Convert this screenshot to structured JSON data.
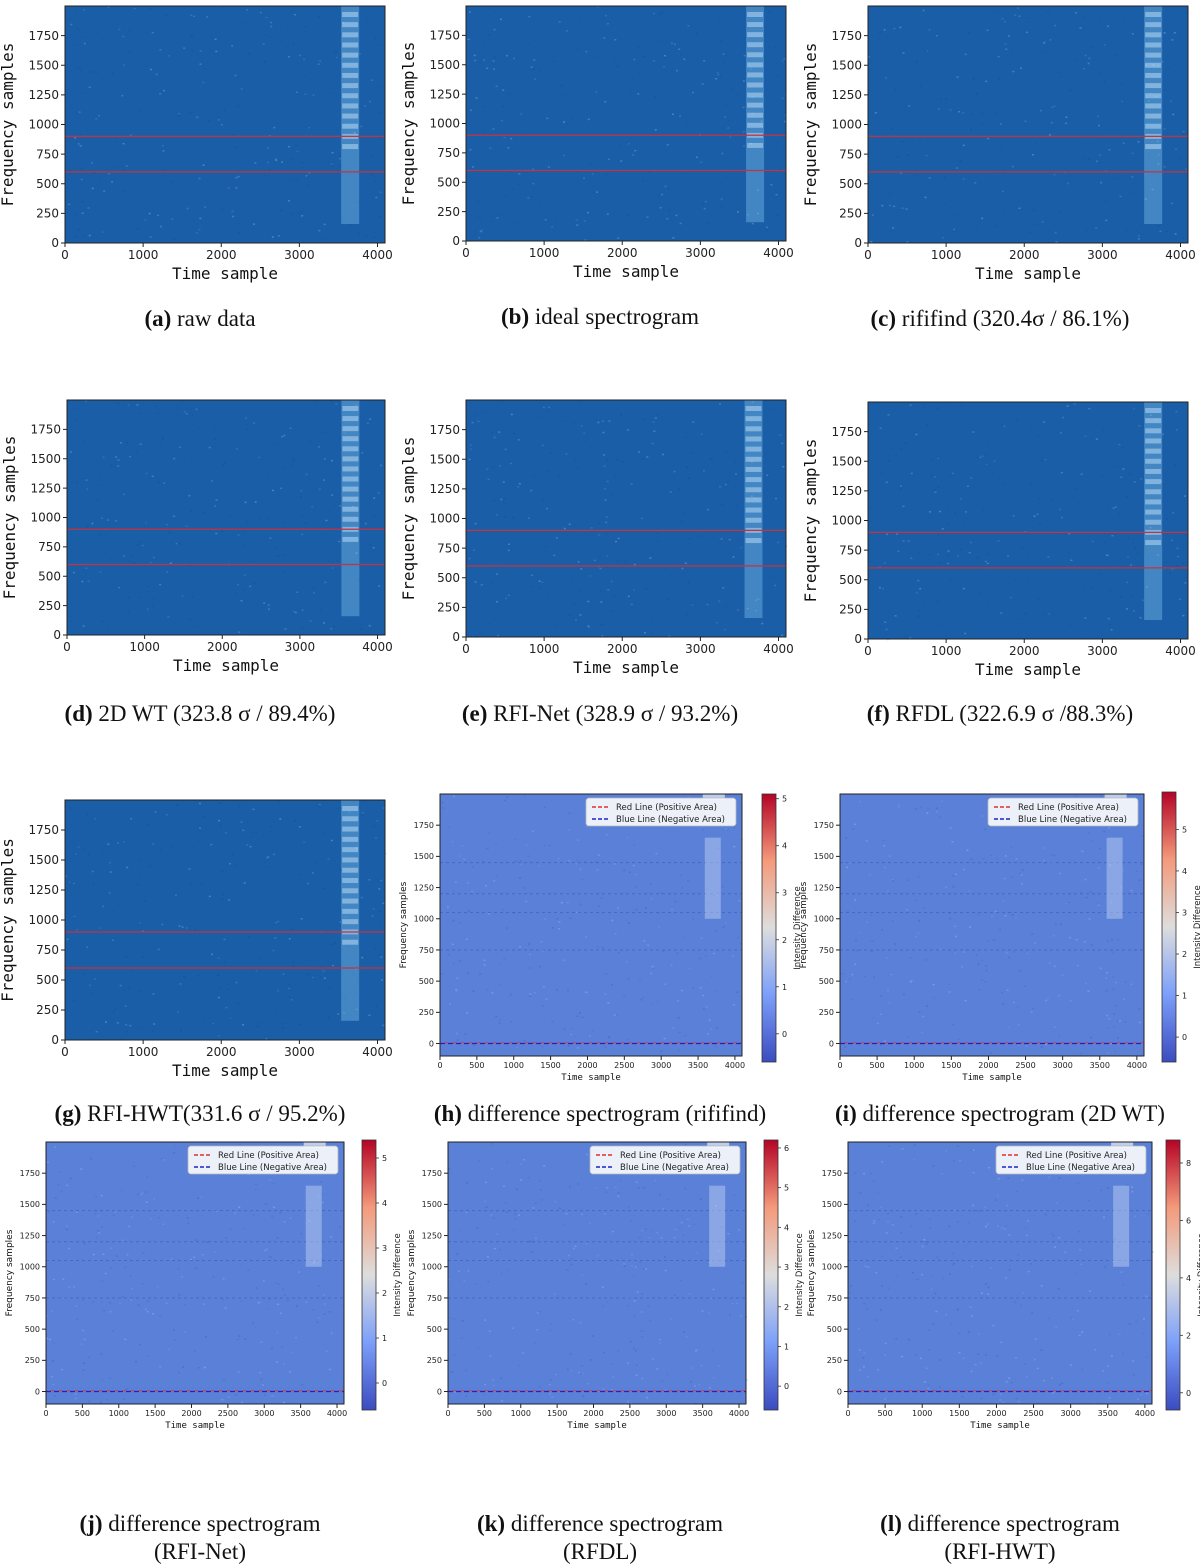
{
  "panels": [
    {
      "id": "a",
      "kind": "spec",
      "letter": "(a)",
      "caption": "raw data",
      "ylabel": "Frequency samples",
      "xlabel": "Time sample"
    },
    {
      "id": "b",
      "kind": "spec",
      "letter": "(b)",
      "caption": "ideal spectrogram",
      "ylabel": "Frequency samples",
      "xlabel": "Time sample"
    },
    {
      "id": "c",
      "kind": "spec",
      "letter": "(c)",
      "caption": "rififind (320.4σ / 86.1%)",
      "ylabel": "Frequency samples",
      "xlabel": "Time sample"
    },
    {
      "id": "d",
      "kind": "spec",
      "letter": "(d)",
      "caption": "2D WT (323.8 σ / 89.4%)",
      "ylabel": "Frequency samples",
      "xlabel": "Time sample"
    },
    {
      "id": "e",
      "kind": "spec",
      "letter": "(e)",
      "caption": "RFI-Net (328.9 σ / 93.2%)",
      "ylabel": "Frequency samples",
      "xlabel": "Time sample"
    },
    {
      "id": "f",
      "kind": "spec",
      "letter": "(f)",
      "caption": "RFDL (322.6.9 σ /88.3%)",
      "ylabel": "Frequency samples",
      "xlabel": "Time sample"
    },
    {
      "id": "g",
      "kind": "spec",
      "letter": "(g)",
      "caption": "RFI-HWT(331.6 σ / 95.2%)",
      "ylabel": "Frequency samples",
      "xlabel": "Time sample"
    },
    {
      "id": "h",
      "kind": "diff",
      "letter": "(h)",
      "caption": "difference spectrogram (rififind)",
      "ylabel": "Frequency samples",
      "xlabel": "Time sample",
      "cbar_label": "Intensity Difference",
      "cbar_max": 5.1,
      "cbar_ticks": [
        0,
        1,
        2,
        3,
        4,
        5
      ]
    },
    {
      "id": "i",
      "kind": "diff",
      "letter": "(i)",
      "caption": "difference spectrogram (2D WT)",
      "ylabel": "Frequency samples",
      "xlabel": "Time sample",
      "cbar_label": "Intensity Difference",
      "cbar_max": 5.9,
      "cbar_ticks": [
        0,
        1,
        2,
        3,
        4,
        5
      ]
    },
    {
      "id": "j",
      "kind": "diff",
      "letter": "(j)",
      "caption": "difference spectrogram",
      "caption2": "(RFI-Net)",
      "ylabel": "Frequency samples",
      "xlabel": "Time sample",
      "cbar_label": "Intensity Difference",
      "cbar_max": 5.4,
      "cbar_ticks": [
        0,
        1,
        2,
        3,
        4,
        5
      ]
    },
    {
      "id": "k",
      "kind": "diff",
      "letter": "(k)",
      "caption": "difference spectrogram",
      "caption2": "(RFDL)",
      "ylabel": "Frequency samples",
      "xlabel": "Time sample",
      "cbar_label": "Intensity Difference",
      "cbar_max": 6.2,
      "cbar_ticks": [
        0,
        1,
        2,
        3,
        4,
        5,
        6
      ]
    },
    {
      "id": "l",
      "kind": "diff",
      "letter": "(l)",
      "caption": "difference spectrogram",
      "caption2": "(RFI-HWT)",
      "ylabel": "Frequency samples",
      "xlabel": "Time sample",
      "cbar_label": "Intensity Difference",
      "cbar_max": 8.8,
      "cbar_ticks": [
        0,
        2,
        4,
        6,
        8
      ]
    }
  ],
  "legend": {
    "red": "Red Line (Positive Area)",
    "blue": "Blue Line (Negative Area)"
  },
  "colors": {
    "spec_bg": "#1a5ea8",
    "spec_bright": "#8ed0f5",
    "red_line": "#c8323c",
    "diff_bg": "#5a80d8",
    "legend_red": "#e03030",
    "legend_blue": "#2020c8"
  },
  "chart_data": [
    {
      "type": "heatmap",
      "panel": "a",
      "xlim": [
        0,
        4096
      ],
      "ylim": [
        0,
        2000
      ],
      "x_ticks": [
        0,
        1000,
        2000,
        3000,
        4000
      ],
      "y_ticks": [
        0,
        250,
        500,
        750,
        1000,
        1250,
        1500,
        1750
      ],
      "hlines": [
        600,
        900
      ],
      "signal_x": 3650
    },
    {
      "type": "heatmap",
      "panel": "b",
      "xlim": [
        0,
        4096
      ],
      "ylim": [
        0,
        2000
      ],
      "x_ticks": [
        0,
        1000,
        2000,
        3000,
        4000
      ],
      "y_ticks": [
        0,
        250,
        500,
        750,
        1000,
        1250,
        1500,
        1750
      ],
      "hlines": [
        600,
        900
      ],
      "signal_x": 3700
    },
    {
      "type": "heatmap",
      "panel": "c",
      "xlim": [
        0,
        4096
      ],
      "ylim": [
        0,
        2000
      ],
      "x_ticks": [
        0,
        1000,
        2000,
        3000,
        4000
      ],
      "y_ticks": [
        0,
        250,
        500,
        750,
        1000,
        1250,
        1500,
        1750
      ],
      "hlines": [
        600,
        900
      ],
      "signal_x": 3650
    },
    {
      "type": "heatmap",
      "panel": "d",
      "xlim": [
        0,
        4096
      ],
      "ylim": [
        0,
        2000
      ],
      "x_ticks": [
        0,
        1000,
        2000,
        3000,
        4000
      ],
      "y_ticks": [
        0,
        250,
        500,
        750,
        1000,
        1250,
        1500,
        1750
      ],
      "hlines": [
        600,
        900
      ],
      "signal_x": 3650
    },
    {
      "type": "heatmap",
      "panel": "e",
      "xlim": [
        0,
        4096
      ],
      "ylim": [
        0,
        2000
      ],
      "x_ticks": [
        0,
        1000,
        2000,
        3000,
        4000
      ],
      "y_ticks": [
        0,
        250,
        500,
        750,
        1000,
        1250,
        1500,
        1750
      ],
      "hlines": [
        600,
        900
      ],
      "signal_x": 3680
    },
    {
      "type": "heatmap",
      "panel": "f",
      "xlim": [
        0,
        4096
      ],
      "ylim": [
        0,
        2000
      ],
      "x_ticks": [
        0,
        1000,
        2000,
        3000,
        4000
      ],
      "y_ticks": [
        0,
        250,
        500,
        750,
        1000,
        1250,
        1500,
        1750
      ],
      "hlines": [
        600,
        900
      ],
      "signal_x": 3650
    },
    {
      "type": "heatmap",
      "panel": "g",
      "xlim": [
        0,
        4096
      ],
      "ylim": [
        0,
        2000
      ],
      "x_ticks": [
        0,
        1000,
        2000,
        3000,
        4000
      ],
      "y_ticks": [
        0,
        250,
        500,
        750,
        1000,
        1250,
        1500,
        1750
      ],
      "hlines": [
        600,
        900
      ],
      "signal_x": 3650
    },
    {
      "type": "heatmap",
      "panel": "h",
      "xlim": [
        0,
        4096
      ],
      "ylim": [
        -100,
        2000
      ],
      "x_ticks": [
        0,
        500,
        1000,
        1500,
        2000,
        2500,
        3000,
        3500,
        4000
      ],
      "y_ticks": [
        0,
        250,
        500,
        750,
        1000,
        1250,
        1500,
        1750
      ],
      "hlines": [
        0
      ],
      "signal_x": 3700
    },
    {
      "type": "heatmap",
      "panel": "i",
      "xlim": [
        0,
        4096
      ],
      "ylim": [
        -100,
        2000
      ],
      "x_ticks": [
        0,
        500,
        1000,
        1500,
        2000,
        2500,
        3000,
        3500,
        4000
      ],
      "y_ticks": [
        0,
        250,
        500,
        750,
        1000,
        1250,
        1500,
        1750
      ],
      "hlines": [
        0
      ],
      "signal_x": 3700
    },
    {
      "type": "heatmap",
      "panel": "j",
      "xlim": [
        0,
        4096
      ],
      "ylim": [
        -100,
        2000
      ],
      "x_ticks": [
        0,
        500,
        1000,
        1500,
        2000,
        2500,
        3000,
        3500,
        4000
      ],
      "y_ticks": [
        0,
        250,
        500,
        750,
        1000,
        1250,
        1500,
        1750
      ],
      "hlines": [
        0
      ],
      "signal_x": 3680
    },
    {
      "type": "heatmap",
      "panel": "k",
      "xlim": [
        0,
        4096
      ],
      "ylim": [
        -100,
        2000
      ],
      "x_ticks": [
        0,
        500,
        1000,
        1500,
        2000,
        2500,
        3000,
        3500,
        4000
      ],
      "y_ticks": [
        0,
        250,
        500,
        750,
        1000,
        1250,
        1500,
        1750
      ],
      "hlines": [
        0
      ],
      "signal_x": 3700
    },
    {
      "type": "heatmap",
      "panel": "l",
      "xlim": [
        0,
        4096
      ],
      "ylim": [
        -100,
        2000
      ],
      "x_ticks": [
        0,
        500,
        1000,
        1500,
        2000,
        2500,
        3000,
        3500,
        4000
      ],
      "y_ticks": [
        0,
        250,
        500,
        750,
        1000,
        1250,
        1500,
        1750
      ],
      "hlines": [
        0
      ],
      "signal_x": 3680
    }
  ]
}
